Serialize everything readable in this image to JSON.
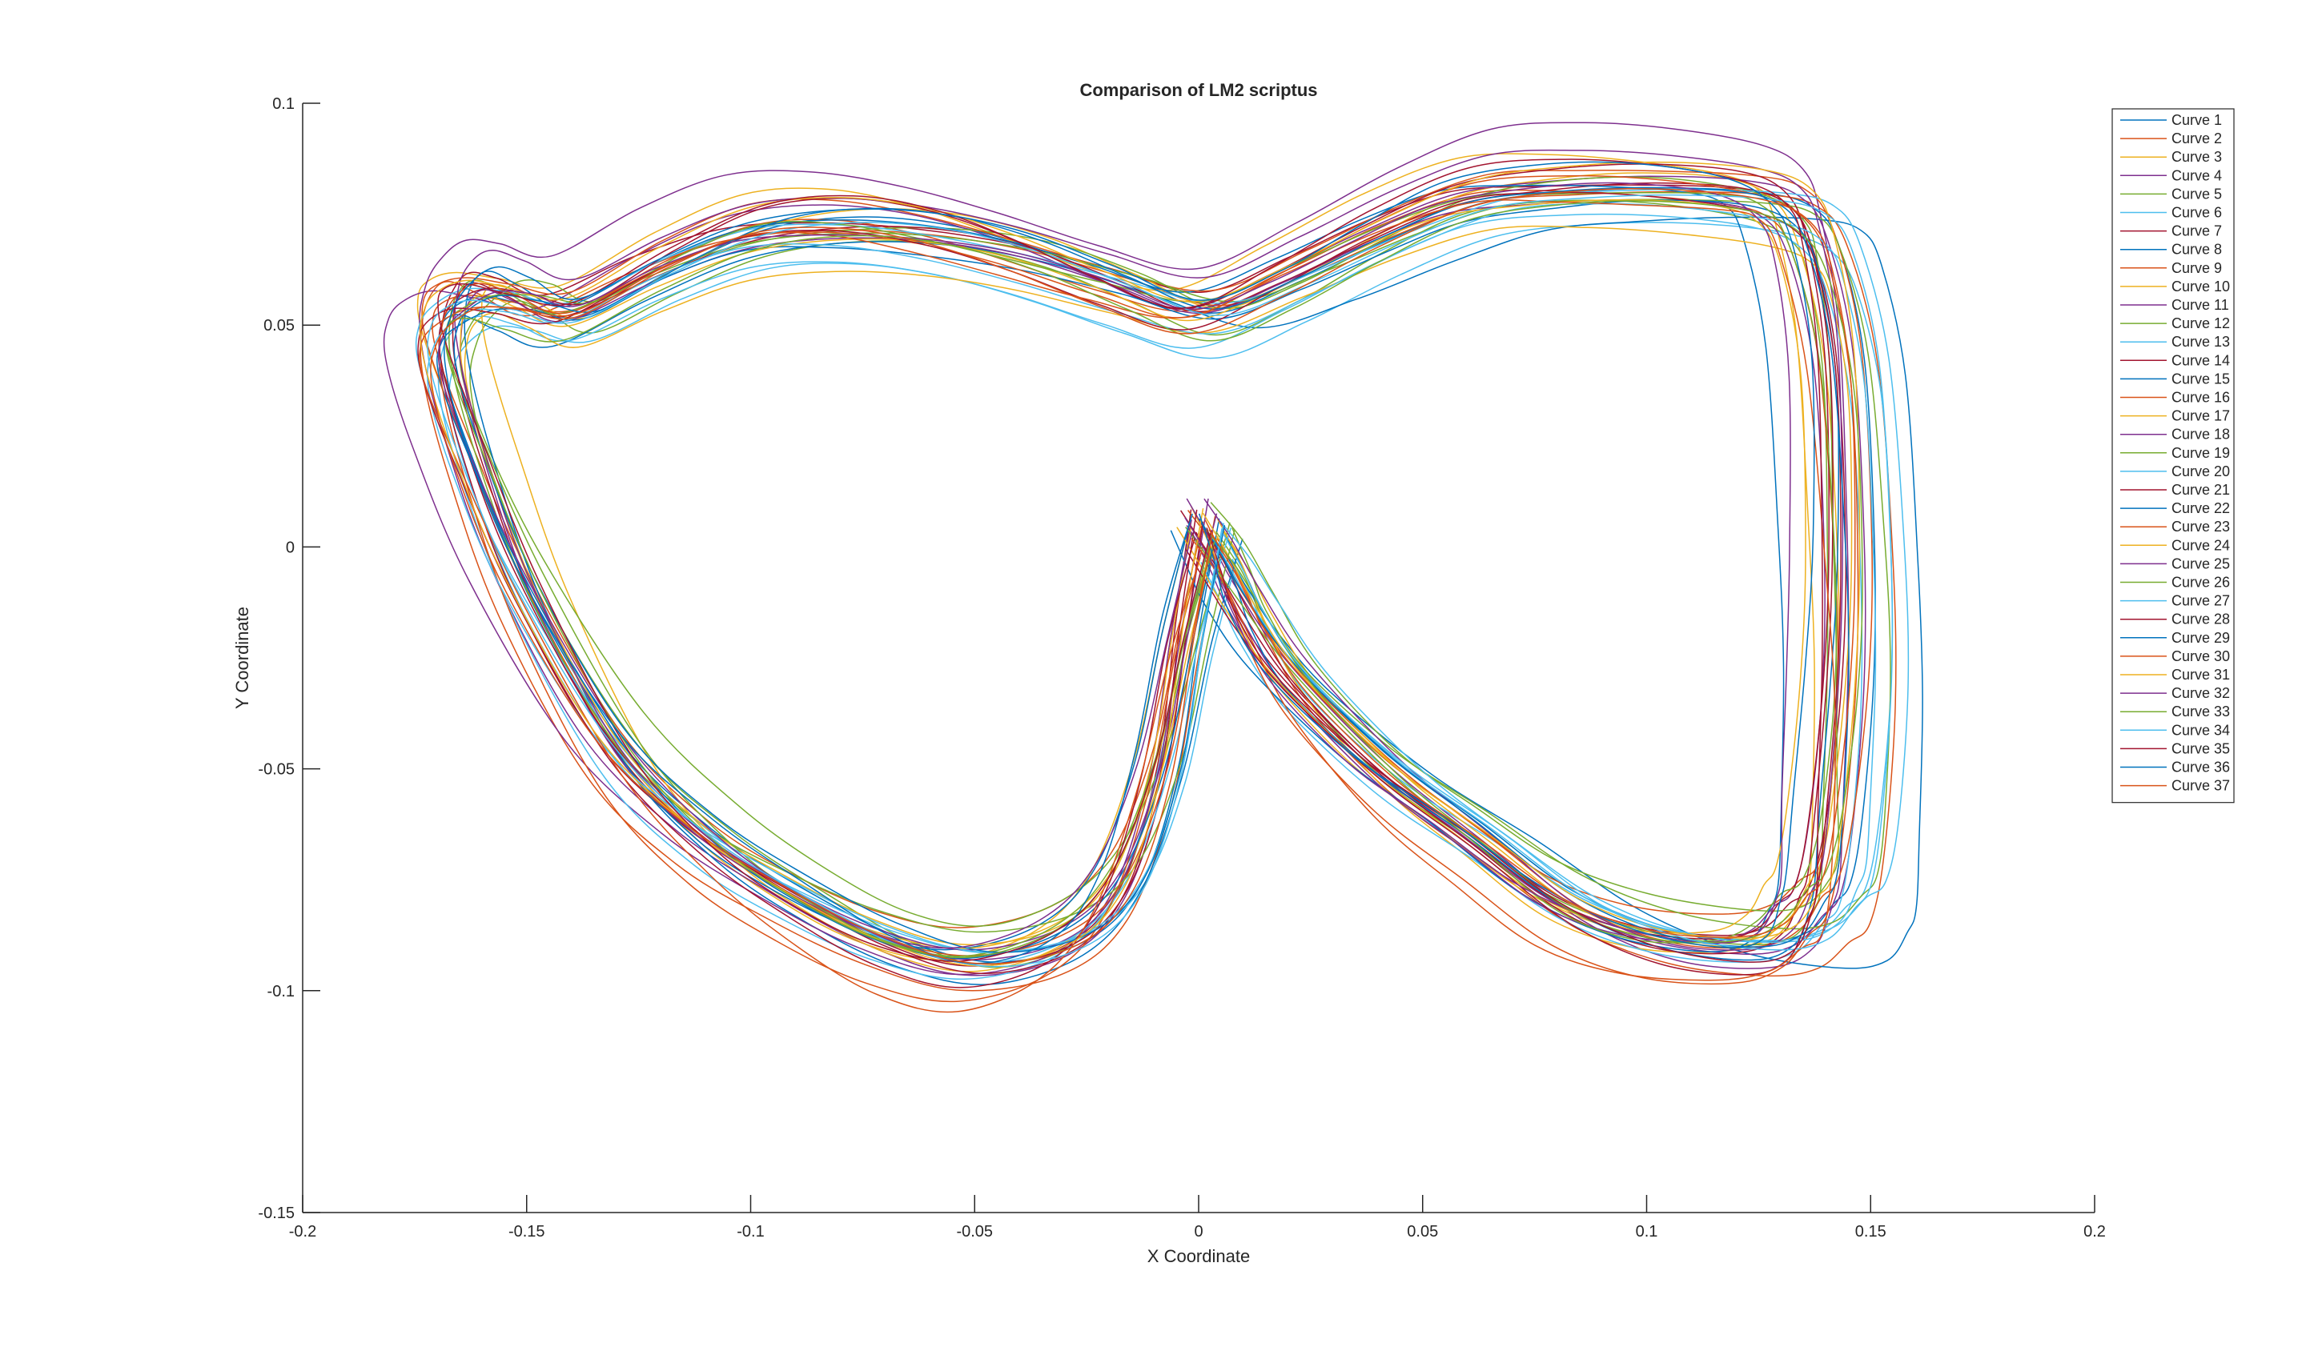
{
  "chart_data": {
    "type": "line",
    "title": "Comparison of LM2 scriptus",
    "xlabel": "X Coordinate",
    "ylabel": "Y Coordinate",
    "xlim": [
      -0.2,
      0.2
    ],
    "ylim": [
      -0.15,
      0.1
    ],
    "xticks": [
      -0.2,
      -0.15,
      -0.1,
      -0.05,
      0,
      0.05,
      0.1,
      0.15,
      0.2
    ],
    "yticks": [
      -0.15,
      -0.1,
      -0.05,
      0,
      0.05,
      0.1
    ],
    "xtick_labels": [
      "-0.2",
      "-0.15",
      "-0.1",
      "-0.05",
      "0",
      "0.05",
      "0.1",
      "0.15",
      "0.2"
    ],
    "ytick_labels": [
      "-0.15",
      "-0.1",
      "-0.05",
      "0",
      "0.05",
      "0.1"
    ],
    "grid": false,
    "legend_position": "top-right",
    "base_shape": {
      "x": [
        0.0,
        -0.005,
        -0.01,
        -0.018,
        -0.03,
        -0.05,
        -0.07,
        -0.09,
        -0.11,
        -0.13,
        -0.15,
        -0.162,
        -0.168,
        -0.168,
        -0.165,
        -0.16,
        -0.152,
        -0.14,
        -0.12,
        -0.1,
        -0.08,
        -0.06,
        -0.04,
        -0.02,
        0.0,
        0.02,
        0.04,
        0.06,
        0.08,
        0.1,
        0.12,
        0.13,
        0.135,
        0.14,
        0.142,
        0.142,
        0.14,
        0.138,
        0.135,
        0.13,
        0.12,
        0.1,
        0.08,
        0.06,
        0.04,
        0.02,
        0.01,
        0.005,
        0.0
      ],
      "y": [
        0.004,
        -0.02,
        -0.05,
        -0.075,
        -0.088,
        -0.093,
        -0.088,
        -0.078,
        -0.065,
        -0.045,
        -0.01,
        0.02,
        0.04,
        0.05,
        0.055,
        0.057,
        0.055,
        0.052,
        0.062,
        0.07,
        0.072,
        0.07,
        0.065,
        0.058,
        0.052,
        0.06,
        0.07,
        0.078,
        0.08,
        0.08,
        0.078,
        0.074,
        0.065,
        0.04,
        0.0,
        -0.03,
        -0.06,
        -0.075,
        -0.08,
        -0.087,
        -0.09,
        -0.088,
        -0.08,
        -0.065,
        -0.05,
        -0.03,
        -0.015,
        -0.005,
        0.004
      ]
    },
    "series": [
      {
        "name": "Curve 1",
        "color": "#0072BD",
        "sx": 1.02,
        "sy": 1.0,
        "dx": 0.004,
        "dy": 0.001,
        "amp": 0.002,
        "freq": 3.1,
        "phase": 0.3
      },
      {
        "name": "Curve 2",
        "color": "#D95319",
        "sx": 1.06,
        "sy": 1.06,
        "dx": 0.002,
        "dy": -0.003,
        "amp": 0.003,
        "freq": 4.2,
        "phase": 1.1
      },
      {
        "name": "Curve 3",
        "color": "#EDB120",
        "sx": 1.0,
        "sy": 1.05,
        "dx": -0.004,
        "dy": 0.004,
        "amp": 0.0025,
        "freq": 5.0,
        "phase": 2.0
      },
      {
        "name": "Curve 4",
        "color": "#7E2F8E",
        "sx": 1.04,
        "sy": 1.1,
        "dx": 0.0,
        "dy": 0.006,
        "amp": 0.003,
        "freq": 3.7,
        "phase": 0.8
      },
      {
        "name": "Curve 5",
        "color": "#77AC30",
        "sx": 0.98,
        "sy": 0.98,
        "dx": 0.003,
        "dy": -0.002,
        "amp": 0.002,
        "freq": 6.0,
        "phase": 2.7
      },
      {
        "name": "Curve 6",
        "color": "#4DBEEE",
        "sx": 1.03,
        "sy": 0.95,
        "dx": 0.006,
        "dy": -0.005,
        "amp": 0.0025,
        "freq": 2.8,
        "phase": 1.9
      },
      {
        "name": "Curve 7",
        "color": "#A2142F",
        "sx": 1.01,
        "sy": 1.02,
        "dx": -0.002,
        "dy": 0.002,
        "amp": 0.003,
        "freq": 4.6,
        "phase": 0.1
      },
      {
        "name": "Curve 8",
        "color": "#0072BD",
        "sx": 1.08,
        "sy": 1.0,
        "dx": 0.01,
        "dy": -0.004,
        "amp": 0.0035,
        "freq": 3.3,
        "phase": 3.2
      },
      {
        "name": "Curve 9",
        "color": "#D95319",
        "sx": 1.0,
        "sy": 0.97,
        "dx": -0.001,
        "dy": 0.003,
        "amp": 0.002,
        "freq": 5.4,
        "phase": 1.4
      },
      {
        "name": "Curve 10",
        "color": "#EDB120",
        "sx": 0.97,
        "sy": 1.04,
        "dx": 0.002,
        "dy": 0.0,
        "amp": 0.003,
        "freq": 4.0,
        "phase": 2.3
      },
      {
        "name": "Curve 11",
        "color": "#7E2F8E",
        "sx": 1.05,
        "sy": 1.03,
        "dx": -0.003,
        "dy": 0.001,
        "amp": 0.0025,
        "freq": 3.0,
        "phase": 0.6
      },
      {
        "name": "Curve 12",
        "color": "#77AC30",
        "sx": 0.99,
        "sy": 0.96,
        "dx": 0.004,
        "dy": 0.004,
        "amp": 0.003,
        "freq": 6.3,
        "phase": 1.7
      },
      {
        "name": "Curve 13",
        "color": "#4DBEEE",
        "sx": 1.02,
        "sy": 0.99,
        "dx": 0.001,
        "dy": -0.006,
        "amp": 0.002,
        "freq": 2.5,
        "phase": 2.9
      },
      {
        "name": "Curve 14",
        "color": "#A2142F",
        "sx": 1.0,
        "sy": 1.01,
        "dx": 0.0,
        "dy": 0.0,
        "amp": 0.0025,
        "freq": 4.9,
        "phase": 0.4
      },
      {
        "name": "Curve 15",
        "color": "#0072BD",
        "sx": 0.96,
        "sy": 1.02,
        "dx": -0.005,
        "dy": 0.002,
        "amp": 0.003,
        "freq": 3.6,
        "phase": 2.1
      },
      {
        "name": "Curve 16",
        "color": "#D95319",
        "sx": 1.03,
        "sy": 1.04,
        "dx": 0.002,
        "dy": 0.003,
        "amp": 0.002,
        "freq": 5.8,
        "phase": 1.0
      },
      {
        "name": "Curve 17",
        "color": "#EDB120",
        "sx": 1.01,
        "sy": 0.94,
        "dx": 0.003,
        "dy": -0.003,
        "amp": 0.0035,
        "freq": 2.9,
        "phase": 3.0
      },
      {
        "name": "Curve 18",
        "color": "#7E2F8E",
        "sx": 0.98,
        "sy": 1.0,
        "dx": -0.002,
        "dy": -0.001,
        "amp": 0.0025,
        "freq": 4.4,
        "phase": 0.9
      },
      {
        "name": "Curve 19",
        "color": "#77AC30",
        "sx": 1.04,
        "sy": 0.98,
        "dx": 0.005,
        "dy": 0.002,
        "amp": 0.003,
        "freq": 3.9,
        "phase": 1.6
      },
      {
        "name": "Curve 20",
        "color": "#4DBEEE",
        "sx": 1.06,
        "sy": 1.01,
        "dx": 0.006,
        "dy": 0.001,
        "amp": 0.002,
        "freq": 5.2,
        "phase": 2.5
      },
      {
        "name": "Curve 21",
        "color": "#A2142F",
        "sx": 0.99,
        "sy": 1.03,
        "dx": -0.001,
        "dy": 0.002,
        "amp": 0.003,
        "freq": 3.4,
        "phase": 0.2
      },
      {
        "name": "Curve 22",
        "color": "#0072BD",
        "sx": 1.0,
        "sy": 0.99,
        "dx": 0.001,
        "dy": -0.002,
        "amp": 0.0025,
        "freq": 6.1,
        "phase": 1.3
      },
      {
        "name": "Curve 23",
        "color": "#D95319",
        "sx": 1.02,
        "sy": 1.07,
        "dx": 0.0,
        "dy": -0.004,
        "amp": 0.003,
        "freq": 2.7,
        "phase": 2.8
      },
      {
        "name": "Curve 24",
        "color": "#EDB120",
        "sx": 0.97,
        "sy": 0.97,
        "dx": -0.003,
        "dy": 0.0,
        "amp": 0.002,
        "freq": 4.7,
        "phase": 0.7
      },
      {
        "name": "Curve 25",
        "color": "#7E2F8E",
        "sx": 1.01,
        "sy": 1.05,
        "dx": 0.002,
        "dy": 0.005,
        "amp": 0.0025,
        "freq": 3.2,
        "phase": 2.2
      },
      {
        "name": "Curve 26",
        "color": "#77AC30",
        "sx": 0.98,
        "sy": 1.01,
        "dx": 0.0,
        "dy": 0.001,
        "amp": 0.003,
        "freq": 5.5,
        "phase": 1.8
      },
      {
        "name": "Curve 27",
        "color": "#4DBEEE",
        "sx": 1.05,
        "sy": 0.96,
        "dx": 0.004,
        "dy": -0.001,
        "amp": 0.0025,
        "freq": 3.8,
        "phase": 0.5
      },
      {
        "name": "Curve 28",
        "color": "#A2142F",
        "sx": 1.02,
        "sy": 1.02,
        "dx": -0.001,
        "dy": -0.003,
        "amp": 0.002,
        "freq": 4.3,
        "phase": 3.1
      },
      {
        "name": "Curve 29",
        "color": "#0072BD",
        "sx": 0.99,
        "sy": 1.0,
        "dx": 0.003,
        "dy": 0.002,
        "amp": 0.003,
        "freq": 2.6,
        "phase": 1.2
      },
      {
        "name": "Curve 30",
        "color": "#D95319",
        "sx": 1.0,
        "sy": 1.06,
        "dx": -0.002,
        "dy": -0.005,
        "amp": 0.0035,
        "freq": 5.1,
        "phase": 2.4
      },
      {
        "name": "Curve 31",
        "color": "#EDB120",
        "sx": 1.03,
        "sy": 1.03,
        "dx": 0.001,
        "dy": 0.003,
        "amp": 0.002,
        "freq": 3.5,
        "phase": 0.0
      },
      {
        "name": "Curve 32",
        "color": "#7E2F8E",
        "sx": 0.97,
        "sy": 0.99,
        "dx": -0.004,
        "dy": 0.001,
        "amp": 0.0025,
        "freq": 6.2,
        "phase": 1.5
      },
      {
        "name": "Curve 33",
        "color": "#77AC30",
        "sx": 1.01,
        "sy": 0.97,
        "dx": 0.002,
        "dy": -0.002,
        "amp": 0.003,
        "freq": 4.1,
        "phase": 2.6
      },
      {
        "name": "Curve 34",
        "color": "#4DBEEE",
        "sx": 1.04,
        "sy": 1.0,
        "dx": 0.005,
        "dy": 0.0,
        "amp": 0.002,
        "freq": 3.0,
        "phase": 0.3
      },
      {
        "name": "Curve 35",
        "color": "#A2142F",
        "sx": 1.0,
        "sy": 1.04,
        "dx": 0.0,
        "dy": 0.002,
        "amp": 0.003,
        "freq": 4.8,
        "phase": 1.9
      },
      {
        "name": "Curve 36",
        "color": "#0072BD",
        "sx": 0.98,
        "sy": 1.02,
        "dx": -0.002,
        "dy": 0.003,
        "amp": 0.0025,
        "freq": 5.7,
        "phase": 2.9
      },
      {
        "name": "Curve 37",
        "color": "#D95319",
        "sx": 1.02,
        "sy": 0.99,
        "dx": 0.001,
        "dy": -0.001,
        "amp": 0.003,
        "freq": 3.3,
        "phase": 0.8
      }
    ]
  }
}
